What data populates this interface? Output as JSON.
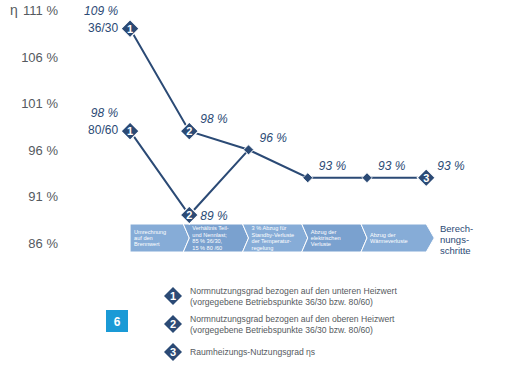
{
  "chart_data": {
    "type": "line",
    "y_label": "η",
    "x_label": [
      "Berech-",
      "nungs-",
      "schritte"
    ],
    "x": [
      0,
      1,
      2,
      3,
      4,
      5
    ],
    "xlim": [
      -1.2,
      5.3
    ],
    "ylim": [
      86,
      111
    ],
    "yticks": [
      {
        "value": 86,
        "label": "86 %"
      },
      {
        "value": 91,
        "label": "91 %"
      },
      {
        "value": 96,
        "label": "96 %"
      },
      {
        "value": 101,
        "label": "101 %"
      },
      {
        "value": 106,
        "label": "106 %"
      },
      {
        "value": 111,
        "label": "111 %"
      }
    ],
    "grid": false,
    "tick_labels": "y",
    "data_labels": true,
    "steps": [
      [
        "Umrechnung",
        "auf den",
        "Brennwert"
      ],
      [
        "Verhältnis Teil-",
        "und Nennlast;",
        "85 % 36/30,",
        "15 % 80 /60"
      ],
      [
        "3 % Abzug für",
        "Standby-Verluste",
        "der Temperatur-",
        "regelung"
      ],
      [
        "Abzug der",
        "elektrischen",
        "Verluste"
      ],
      [
        "Abzug der",
        "Wärmeverluste"
      ]
    ],
    "series": [
      {
        "color": "#2b4a75",
        "marker": "diamond",
        "line_style": "solid",
        "values": [
          109,
          98,
          96,
          93,
          93,
          93
        ],
        "value_labels": [
          "109 %",
          "98 %",
          "96 %",
          "93 %",
          "93 %",
          "93 %"
        ],
        "badges": [
          "1",
          "2",
          null,
          null,
          null,
          "3"
        ],
        "annotation": "36/30"
      },
      {
        "color": "#2b4a75",
        "marker": "diamond",
        "line_style": "solid",
        "values": [
          98,
          89,
          96,
          null,
          null,
          null
        ],
        "value_labels": [
          "98 %",
          "89 %",
          null,
          null,
          null,
          null
        ],
        "badges": [
          "1",
          "2",
          null,
          null,
          null,
          null
        ],
        "annotation": "80/60"
      }
    ],
    "key": [
      {
        "symbol": "1",
        "text": [
          "Normnutzungsgrad bezogen auf den unteren Heizwert",
          "(vorgegebene Betriebspunkte 36/30 bzw. 80/60)"
        ]
      },
      {
        "symbol": "2",
        "text": [
          "Normnutzungsgrad bezogen auf den oberen Heizwert",
          "(vorgegebene Betriebspunkte 36/30 bzw. 80/60)"
        ]
      },
      {
        "symbol": "3",
        "text": [
          "Raumheizungs-Nutzungsgrad ηs"
        ]
      }
    ],
    "figure_number": "6"
  }
}
